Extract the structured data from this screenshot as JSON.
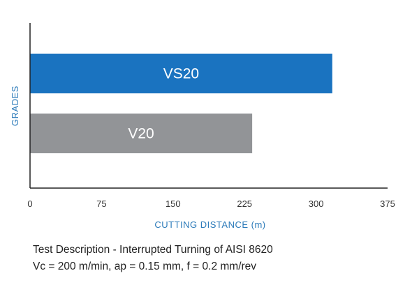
{
  "chart_data": {
    "type": "bar",
    "orientation": "horizontal",
    "categories": [
      "VS20",
      "V20"
    ],
    "values": [
      317,
      233
    ],
    "bar_colors": [
      "#1a73c0",
      "#929497"
    ],
    "xlabel": "CUTTING DISTANCE (m)",
    "ylabel": "GRADES",
    "xlim": [
      0,
      375
    ],
    "x_ticks": [
      "0",
      "75",
      "150",
      "225",
      "300",
      "375"
    ],
    "grid": false,
    "axis_title_color": "#2b7ab9"
  },
  "notes": {
    "line1": "Test Description - Interrupted Turning of AISI 8620",
    "line2": "Vc = 200 m/min, ap = 0.15 mm, f = 0.2 mm/rev"
  }
}
